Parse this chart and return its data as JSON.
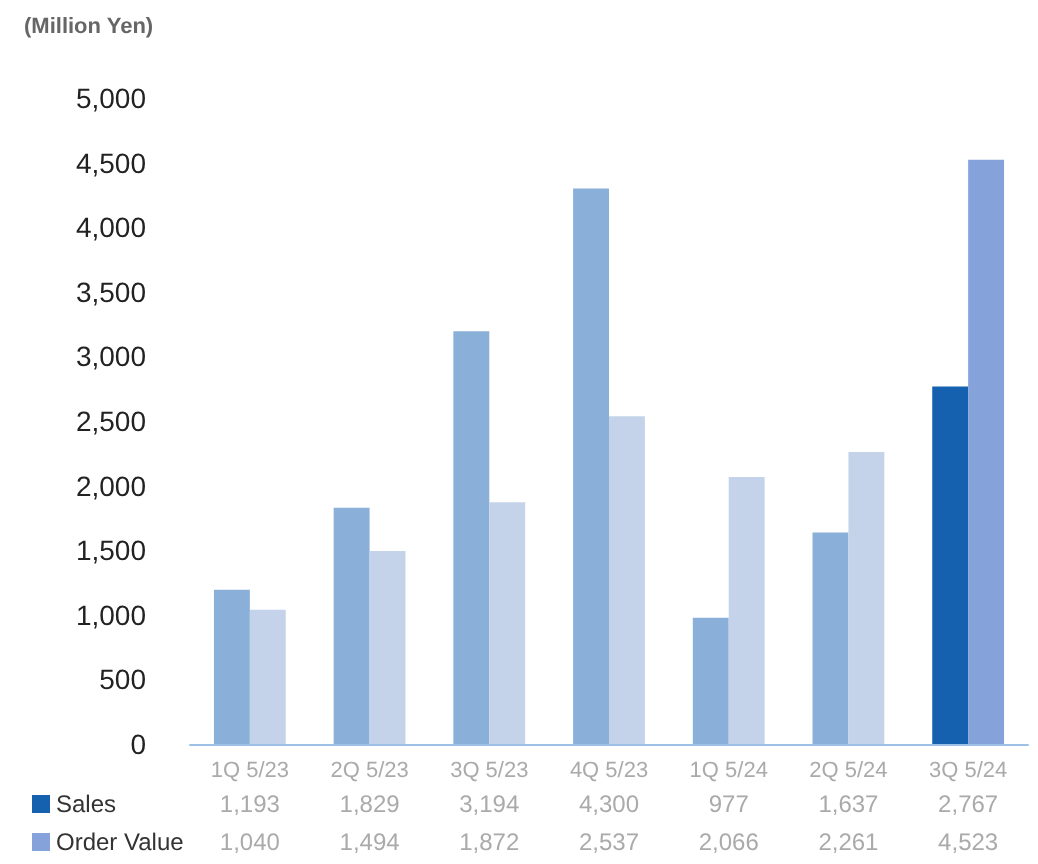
{
  "chart_data": {
    "type": "bar",
    "ylabel": "(Million Yen)",
    "categories": [
      "1Q 5/23",
      "2Q 5/23",
      "3Q 5/23",
      "4Q 5/23",
      "1Q 5/24",
      "2Q 5/24",
      "3Q 5/24"
    ],
    "series": [
      {
        "name": "Sales",
        "color": "#1660b0",
        "colors": [
          "#8ab0da",
          "#8ab0da",
          "#8ab0da",
          "#8ab0da",
          "#8ab0da",
          "#8ab0da",
          "#1660b0"
        ],
        "values": [
          1193,
          1829,
          3194,
          4300,
          977,
          1637,
          2767
        ],
        "value_labels": [
          "1,193",
          "1,829",
          "3,194",
          "4,300",
          "977",
          "1,637",
          "2,767"
        ]
      },
      {
        "name": "Order Value",
        "color": "#86a2da",
        "colors": [
          "#c5d3ea",
          "#c5d3ea",
          "#c5d3ea",
          "#c5d3ea",
          "#c5d3ea",
          "#c5d3ea",
          "#86a2da"
        ],
        "values": [
          1040,
          1494,
          1872,
          2537,
          2066,
          2261,
          4523
        ],
        "value_labels": [
          "1,040",
          "1,494",
          "1,872",
          "2,537",
          "2,066",
          "2,261",
          "4,523"
        ]
      }
    ],
    "ylim": [
      0,
      5000
    ],
    "yticks": [
      0,
      500,
      {
        "value": 1000,
        "label": "1,000"
      },
      {
        "value": 1500,
        "label": "1,500"
      },
      {
        "value": 2000,
        "label": "2,000"
      },
      {
        "value": 2500,
        "label": "2,500"
      },
      {
        "value": 3000,
        "label": "3,000"
      },
      {
        "value": 3500,
        "label": "3,500"
      },
      {
        "value": 4000,
        "label": "4,000"
      },
      {
        "value": 4500,
        "label": "4,500"
      },
      {
        "value": 5000,
        "label": "5,000"
      }
    ],
    "grid": false,
    "legend": "bottom left"
  }
}
